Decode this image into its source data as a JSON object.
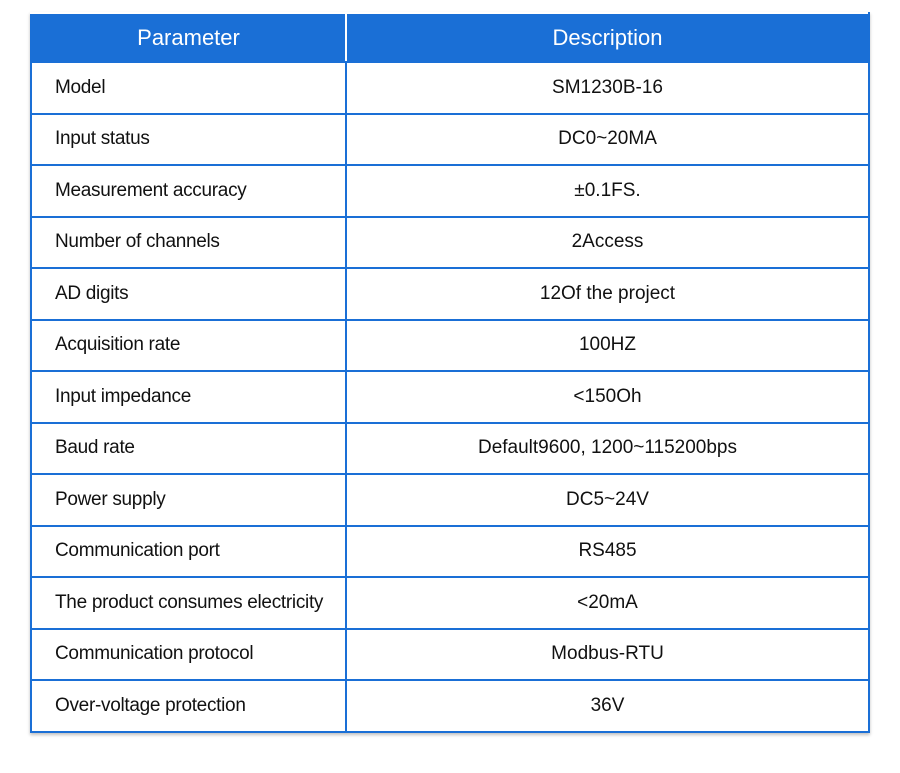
{
  "table": {
    "headers": {
      "parameter": "Parameter",
      "description": "Description"
    },
    "rows": [
      {
        "parameter": "Model",
        "description": "SM1230B-16"
      },
      {
        "parameter": "Input status",
        "description": "DC0~20MA"
      },
      {
        "parameter": "Measurement accuracy",
        "description": "±0.1FS."
      },
      {
        "parameter": "Number of channels",
        "description": "2Access"
      },
      {
        "parameter": "AD digits",
        "description": "12Of the project"
      },
      {
        "parameter": "Acquisition rate",
        "description": "100HZ"
      },
      {
        "parameter": "Input impedance",
        "description": "<150Oh"
      },
      {
        "parameter": "Baud rate",
        "description": "Default9600,  1200~115200bps"
      },
      {
        "parameter": "Power supply",
        "description": "DC5~24V"
      },
      {
        "parameter": "Communication port",
        "description": "RS485"
      },
      {
        "parameter": "The product consumes electricity",
        "description": "<20mA"
      },
      {
        "parameter": "Communication protocol",
        "description": "Modbus-RTU"
      },
      {
        "parameter": "Over-voltage protection",
        "description": "36V"
      }
    ]
  },
  "colors": {
    "header_bg": "#1a6fd6",
    "border": "#1a6fd6",
    "header_text": "#ffffff"
  }
}
